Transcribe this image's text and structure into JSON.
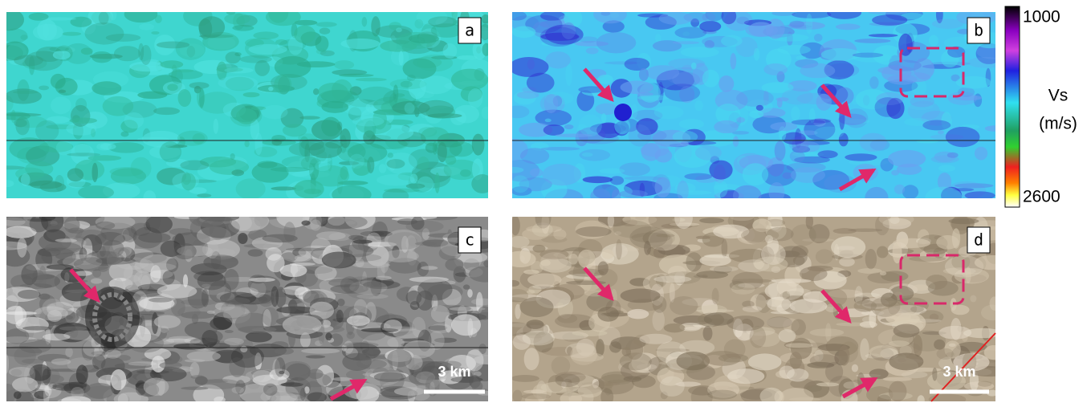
{
  "panels": [
    {
      "label": "a"
    },
    {
      "label": "b"
    },
    {
      "label": "c",
      "scale_bar": "3 km"
    },
    {
      "label": "d",
      "scale_bar": "3 km"
    }
  ],
  "colorbar": {
    "top": 1000,
    "bottom": 2600,
    "title": "Vs",
    "unit": "(m/s)"
  }
}
